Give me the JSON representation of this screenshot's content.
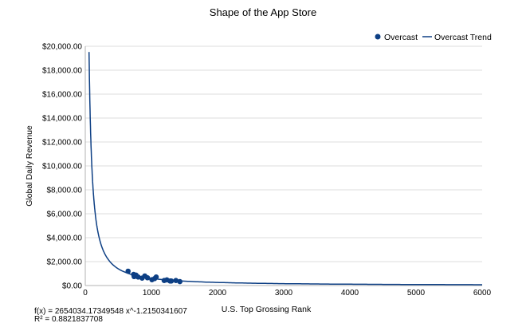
{
  "chart_data": {
    "type": "scatter",
    "title": "Shape of the App Store",
    "xlabel": "U.S. Top Grossing Rank",
    "ylabel": "Global Daily Revenue",
    "xlim": [
      0,
      6000
    ],
    "ylim": [
      0,
      20000
    ],
    "x_ticks": [
      "0",
      "1000",
      "2000",
      "3000",
      "4000",
      "5000",
      "6000"
    ],
    "y_ticks": [
      "$0.00",
      "$2,000.00",
      "$4,000.00",
      "$6,000.00",
      "$8,000.00",
      "$10,000.00",
      "$12,000.00",
      "$14,000.00",
      "$16,000.00",
      "$18,000.00",
      "$20,000.00"
    ],
    "grid": "horizontal",
    "legend_position": "top-right",
    "series": [
      {
        "name": "Overcast",
        "color": "#0d3f84",
        "points": [
          [
            647,
            1200
          ],
          [
            731,
            930
          ],
          [
            739,
            750
          ],
          [
            767,
            870
          ],
          [
            799,
            710
          ],
          [
            859,
            620
          ],
          [
            900,
            800
          ],
          [
            940,
            650
          ],
          [
            1008,
            490
          ],
          [
            1048,
            580
          ],
          [
            1072,
            710
          ],
          [
            1193,
            420
          ],
          [
            1233,
            470
          ],
          [
            1281,
            380
          ],
          [
            1301,
            380
          ],
          [
            1370,
            420
          ],
          [
            1430,
            330
          ]
        ]
      },
      {
        "name": "Overcast Trend",
        "color": "#0d3f84",
        "type": "power-trend",
        "coefficient": 2654034.17349548,
        "exponent": -1.2150341607
      }
    ],
    "trend_equation": "f(x) = 2654034.17349548 x^-1.2150341607",
    "trend_r2": "R² = 0.8821837708"
  }
}
